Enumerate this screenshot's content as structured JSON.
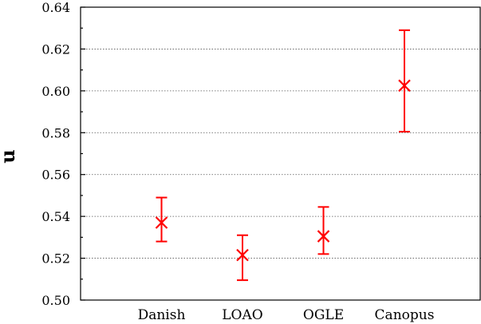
{
  "chart_data": {
    "type": "scatter",
    "title": "",
    "xlabel": "",
    "ylabel": "u",
    "categories": [
      "Danish",
      "LOAO",
      "OGLE",
      "Canopus"
    ],
    "points": [
      {
        "category": "Danish",
        "value": 0.537,
        "err_low": 0.528,
        "err_high": 0.549
      },
      {
        "category": "LOAO",
        "value": 0.5215,
        "err_low": 0.5095,
        "err_high": 0.531
      },
      {
        "category": "OGLE",
        "value": 0.5305,
        "err_low": 0.522,
        "err_high": 0.5445
      },
      {
        "category": "Canopus",
        "value": 0.6025,
        "err_low": 0.5805,
        "err_high": 0.629
      }
    ],
    "ylim": [
      0.5,
      0.64
    ],
    "yticks": [
      "0.50",
      "0.52",
      "0.54",
      "0.56",
      "0.58",
      "0.60",
      "0.62",
      "0.64"
    ],
    "grid": "horizontal dotted",
    "marker": "x",
    "color": "#ff0000"
  }
}
